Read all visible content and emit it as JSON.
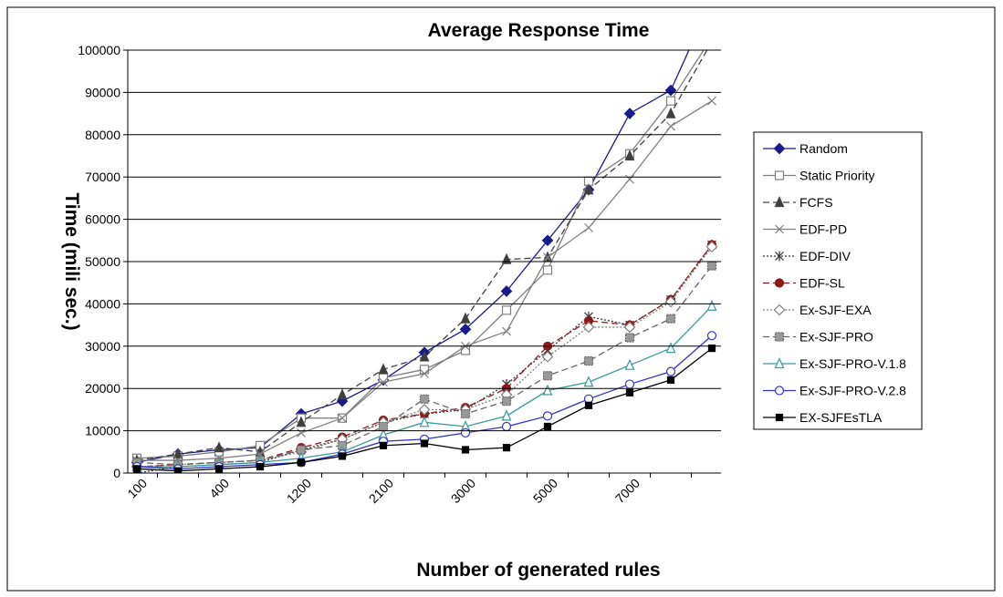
{
  "chart_data": {
    "type": "line",
    "title": "Average Response Time",
    "x_label": "Number of generated rules",
    "y_label": "Time (mili sec.)",
    "categories": [
      "100",
      null,
      "400",
      null,
      "1200",
      null,
      "2100",
      null,
      "3000",
      null,
      "5000",
      null,
      "7000",
      null,
      null
    ],
    "ylim": [
      0,
      100000
    ],
    "yticks": [
      0,
      10000,
      20000,
      30000,
      40000,
      50000,
      60000,
      70000,
      80000,
      90000,
      100000
    ],
    "grid": true,
    "legend": "right",
    "series": [
      {
        "name": "Random",
        "color": "#1a1a8c",
        "marker": "diamond",
        "dash": "solid",
        "values": [
          2500,
          4500,
          5500,
          6000,
          14000,
          17000,
          22000,
          28500,
          34000,
          43000,
          55000,
          67000,
          85000,
          90500,
          112000
        ]
      },
      {
        "name": "Static Priority",
        "color": "#7f7f7f",
        "marker": "square-open",
        "dash": "solid",
        "values": [
          3500,
          4000,
          5000,
          6500,
          13000,
          13000,
          22500,
          24500,
          29000,
          38500,
          48000,
          69000,
          75500,
          88000,
          103000
        ]
      },
      {
        "name": "FCFS",
        "color": "#404040",
        "marker": "triangle",
        "dash": "dashed",
        "values": [
          3000,
          4500,
          6000,
          5000,
          12000,
          18500,
          24500,
          27500,
          36500,
          50500,
          51000,
          67000,
          75000,
          85000,
          102000
        ]
      },
      {
        "name": "EDF-PD",
        "color": "#808080",
        "marker": "x",
        "dash": "solid",
        "values": [
          3000,
          3000,
          3500,
          4500,
          9500,
          13000,
          21500,
          23500,
          30000,
          33500,
          51000,
          58000,
          69500,
          82000,
          88000
        ]
      },
      {
        "name": "EDF-DIV",
        "color": "#333333",
        "marker": "star",
        "dash": "dotted",
        "values": [
          0,
          1500,
          2000,
          2500,
          5500,
          8000,
          12000,
          14000,
          15000,
          21000,
          29000,
          37000,
          35000,
          41000,
          54000
        ]
      },
      {
        "name": "EDF-SL",
        "color": "#8b1a1a",
        "marker": "circle",
        "dash": "dashed",
        "values": [
          1500,
          2000,
          2500,
          3000,
          6000,
          8500,
          12500,
          14000,
          15500,
          20000,
          30000,
          36000,
          35000,
          41000,
          54000
        ]
      },
      {
        "name": "Ex-SJF-EXA",
        "color": "#808080",
        "marker": "diamond-open",
        "dash": "dotted",
        "values": [
          1500,
          2000,
          2500,
          3000,
          5000,
          8000,
          12000,
          15000,
          15000,
          18500,
          27500,
          34500,
          34500,
          40500,
          53500
        ]
      },
      {
        "name": "Ex-SJF-PRO",
        "color": "#666666",
        "marker": "square-hatch",
        "dash": "dashed",
        "values": [
          2500,
          2000,
          2500,
          3000,
          5500,
          6500,
          11000,
          17500,
          14000,
          17000,
          23000,
          26500,
          32000,
          36500,
          49000
        ]
      },
      {
        "name": "Ex-SJF-PRO-V.1.8",
        "color": "#3a9a9a",
        "marker": "triangle-open",
        "dash": "solid",
        "values": [
          1500,
          1500,
          2000,
          2500,
          3500,
          5000,
          9000,
          12000,
          11000,
          13500,
          19500,
          21500,
          25500,
          29500,
          39500
        ]
      },
      {
        "name": "Ex-SJF-PRO-V.2.8",
        "color": "#3333cc",
        "marker": "circle-open",
        "dash": "solid",
        "values": [
          1500,
          1000,
          1500,
          2000,
          2500,
          4500,
          7500,
          8000,
          9500,
          11000,
          13500,
          17500,
          21000,
          24000,
          32500
        ]
      },
      {
        "name": "EX-SJFEsTLA",
        "color": "#000000",
        "marker": "star-square",
        "dash": "solid",
        "values": [
          1000,
          500,
          1000,
          1500,
          2500,
          4000,
          6500,
          7000,
          5500,
          6000,
          11000,
          16000,
          19000,
          22000,
          29500
        ]
      }
    ]
  }
}
